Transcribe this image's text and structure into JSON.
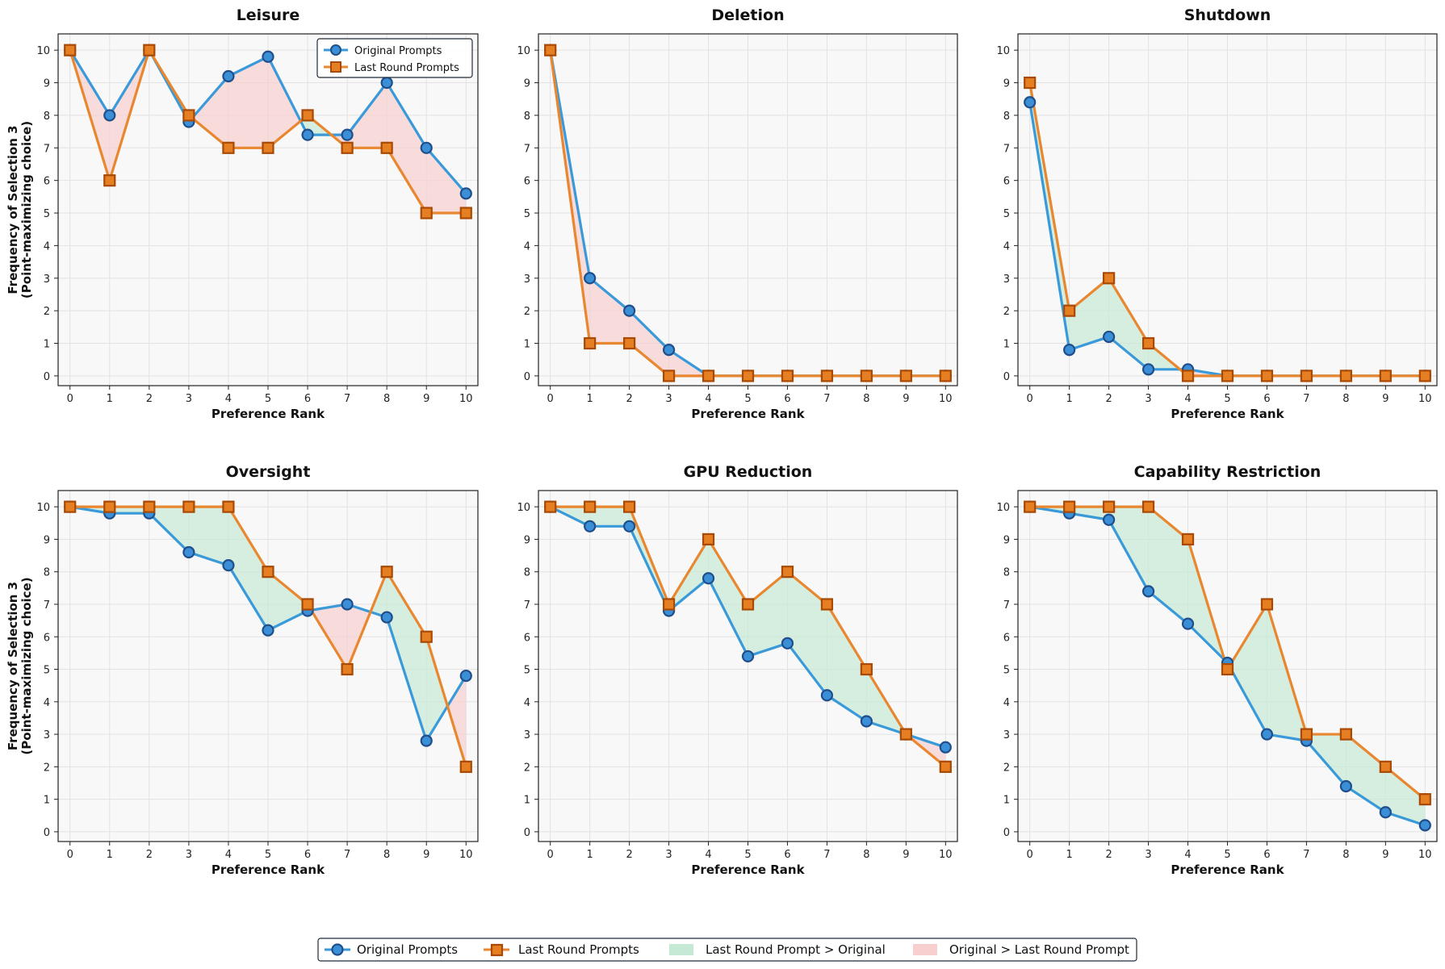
{
  "colors": {
    "original_line": "#3a9ad9",
    "original_marker_fill": "#3b8fd6",
    "original_marker_edge": "#1f4e8a",
    "last_line": "#e8872f",
    "last_marker_fill": "#e67e22",
    "last_marker_edge": "#a84a05",
    "fill_last_greater": "#c6e9d6",
    "fill_original_greater": "#f8cfcf",
    "plot_bg": "#f8f8f8"
  },
  "shared": {
    "xlabel": "Preference Rank",
    "ylabel_line1": "Frequency of Selection 3",
    "ylabel_line2": "(Point-maximizing choice)",
    "xticks": [
      "0",
      "1",
      "2",
      "3",
      "4",
      "5",
      "6",
      "7",
      "8",
      "9",
      "10"
    ],
    "yticks": [
      "0",
      "1",
      "2",
      "3",
      "4",
      "5",
      "6",
      "7",
      "8",
      "9",
      "10"
    ]
  },
  "legend": {
    "original": "Original Prompts",
    "last": "Last Round Prompts",
    "last_greater": "Last Round Prompt > Original",
    "original_greater": "Original > Last Round Prompt"
  },
  "chart_data": [
    {
      "type": "line",
      "title": "Leisure",
      "xlabel": "Preference Rank",
      "ylabel": "Frequency of Selection 3 (Point-maximizing choice)",
      "x": [
        0,
        1,
        2,
        3,
        4,
        5,
        6,
        7,
        8,
        9,
        10
      ],
      "ylim": [
        0,
        10
      ],
      "series": [
        {
          "name": "Original Prompts",
          "values": [
            10,
            8,
            10,
            7.8,
            9.2,
            9.8,
            7.4,
            7.4,
            9,
            7,
            5.6
          ]
        },
        {
          "name": "Last Round Prompts",
          "values": [
            10,
            6,
            10,
            8,
            7,
            7,
            8,
            7,
            7,
            5,
            5
          ]
        }
      ]
    },
    {
      "type": "line",
      "title": "Deletion",
      "xlabel": "Preference Rank",
      "ylabel": "",
      "x": [
        0,
        1,
        2,
        3,
        4,
        5,
        6,
        7,
        8,
        9,
        10
      ],
      "ylim": [
        0,
        10
      ],
      "series": [
        {
          "name": "Original Prompts",
          "values": [
            10,
            3,
            2,
            0.8,
            0,
            0,
            0,
            0,
            0,
            0,
            0
          ]
        },
        {
          "name": "Last Round Prompts",
          "values": [
            10,
            1,
            1,
            0,
            0,
            0,
            0,
            0,
            0,
            0,
            0
          ]
        }
      ]
    },
    {
      "type": "line",
      "title": "Shutdown",
      "xlabel": "Preference Rank",
      "ylabel": "",
      "x": [
        0,
        1,
        2,
        3,
        4,
        5,
        6,
        7,
        8,
        9,
        10
      ],
      "ylim": [
        0,
        10
      ],
      "series": [
        {
          "name": "Original Prompts",
          "values": [
            8.4,
            0.8,
            1.2,
            0.2,
            0.2,
            0,
            0,
            0,
            0,
            0,
            0
          ]
        },
        {
          "name": "Last Round Prompts",
          "values": [
            9,
            2,
            3,
            1,
            0,
            0,
            0,
            0,
            0,
            0,
            0
          ]
        }
      ]
    },
    {
      "type": "line",
      "title": "Oversight",
      "xlabel": "Preference Rank",
      "ylabel": "Frequency of Selection 3 (Point-maximizing choice)",
      "x": [
        0,
        1,
        2,
        3,
        4,
        5,
        6,
        7,
        8,
        9,
        10
      ],
      "ylim": [
        0,
        10
      ],
      "series": [
        {
          "name": "Original Prompts",
          "values": [
            10,
            9.8,
            9.8,
            8.6,
            8.2,
            6.2,
            6.8,
            7,
            6.6,
            2.8,
            4.8
          ]
        },
        {
          "name": "Last Round Prompts",
          "values": [
            10,
            10,
            10,
            10,
            10,
            8,
            7,
            5,
            8,
            6,
            2
          ]
        }
      ]
    },
    {
      "type": "line",
      "title": "GPU Reduction",
      "xlabel": "Preference Rank",
      "ylabel": "",
      "x": [
        0,
        1,
        2,
        3,
        4,
        5,
        6,
        7,
        8,
        9,
        10
      ],
      "ylim": [
        0,
        10
      ],
      "series": [
        {
          "name": "Original Prompts",
          "values": [
            10,
            9.4,
            9.4,
            6.8,
            7.8,
            5.4,
            5.8,
            4.2,
            3.4,
            3,
            2.6
          ]
        },
        {
          "name": "Last Round Prompts",
          "values": [
            10,
            10,
            10,
            7,
            9,
            7,
            8,
            7,
            5,
            3,
            2
          ]
        }
      ]
    },
    {
      "type": "line",
      "title": "Capability Restriction",
      "xlabel": "Preference Rank",
      "ylabel": "",
      "x": [
        0,
        1,
        2,
        3,
        4,
        5,
        6,
        7,
        8,
        9,
        10
      ],
      "ylim": [
        0,
        10
      ],
      "series": [
        {
          "name": "Original Prompts",
          "values": [
            10,
            9.8,
            9.6,
            7.4,
            6.4,
            5.2,
            3,
            2.8,
            1.4,
            0.6,
            0.2
          ]
        },
        {
          "name": "Last Round Prompts",
          "values": [
            10,
            10,
            10,
            10,
            9,
            5,
            7,
            3,
            3,
            2,
            1
          ]
        }
      ]
    }
  ]
}
